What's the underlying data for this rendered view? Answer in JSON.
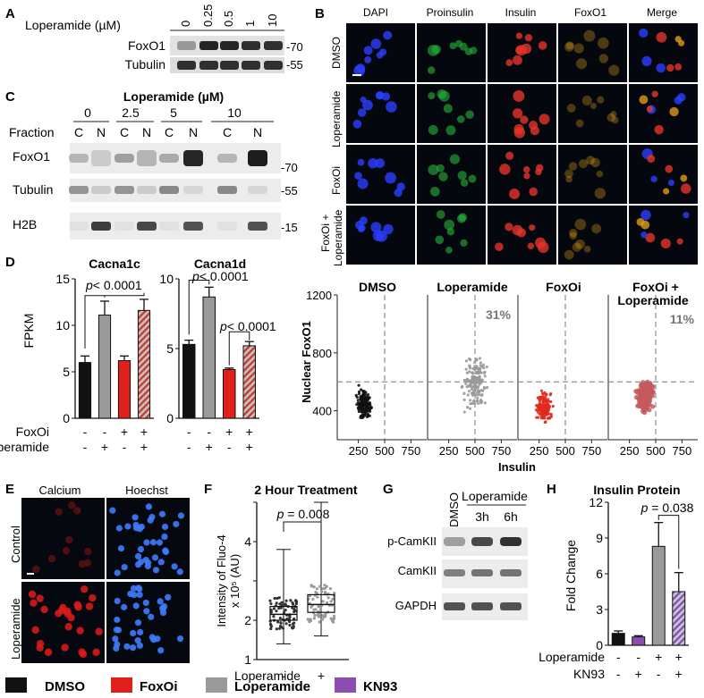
{
  "panels": {
    "A": {
      "letter": "A",
      "axis_title": "Loperamide (µM)",
      "doses": [
        "0",
        "0.25",
        "0.5",
        "1",
        "10"
      ],
      "rows": [
        "FoxO1",
        "Tubulin"
      ],
      "markers": [
        "-70",
        "-55"
      ]
    },
    "B": {
      "letter": "B",
      "columns": [
        "DAPI",
        "Proinsulin",
        "Insulin",
        "FoxO1",
        "Merge"
      ],
      "rows": [
        "DMSO",
        "Loperamide",
        "FoxOi",
        "FoxOi +",
        "Loperamide"
      ]
    },
    "C": {
      "letter": "C",
      "title": "Loperamide (µM)",
      "doses": [
        "0",
        "2.5",
        "5",
        "10"
      ],
      "fraction_label": "Fraction",
      "fractions": [
        "C",
        "N",
        "C",
        "N",
        "C",
        "N",
        "C",
        "N"
      ],
      "rows": [
        "FoxO1",
        "Tubulin",
        "H2B"
      ],
      "markers": [
        "-70",
        "-55",
        "-15"
      ]
    },
    "D": {
      "letter": "D",
      "ylabel": "FPKM",
      "row_labels": [
        "FoxOi",
        "Loperamide"
      ],
      "foxoi_signs": [
        "-",
        "-",
        "+",
        "+"
      ],
      "loperamide_signs": [
        "-",
        "+",
        "-",
        "+"
      ]
    },
    "scatter": {
      "ylabel": "Nuclear FoxO1",
      "xlabel": "Insulin",
      "titles": [
        "DMSO",
        "Loperamide",
        "FoxOi",
        "FoxOi +",
        "Loperamide"
      ],
      "percent_loperamide": "31%",
      "percent_combo": "11%"
    },
    "E": {
      "letter": "E",
      "columns": [
        "Calcium",
        "Hoechst"
      ],
      "rows": [
        "Control",
        "Loperamide"
      ]
    },
    "F": {
      "letter": "F",
      "title": "2 Hour Treatment",
      "ylabel_1": "Intensity of Fluo-4",
      "ylabel_2": "x 10⁵ (AU)",
      "pvalue": "p = 0.008",
      "row_label": "Loperamide",
      "signs": [
        "-",
        "+"
      ]
    },
    "G": {
      "letter": "G",
      "dmso": "DMSO",
      "loperamide": "Loperamide",
      "times": [
        "3h",
        "6h"
      ],
      "rows": [
        "p-CamKII",
        "CamKII",
        "GAPDH"
      ]
    },
    "H": {
      "letter": "H",
      "title": "Insulin Protein",
      "ylabel": "Fold Change",
      "pvalue": "p = 0.038",
      "row_labels": [
        "Loperamide",
        "KN93"
      ],
      "loperamide_signs": [
        "-",
        "-",
        "+",
        "+"
      ],
      "kn93_signs": [
        "-",
        "+",
        "-",
        "+"
      ]
    },
    "legend": [
      {
        "label": "DMSO",
        "color": "#111111"
      },
      {
        "label": "FoxOi",
        "color": "#e0201c"
      },
      {
        "label": "Loperamide",
        "color": "#9a9a9a"
      },
      {
        "label": "KN93",
        "color": "#8a4fb0"
      }
    ]
  },
  "chart_data": [
    {
      "type": "bar",
      "title": "Cacna1c",
      "ylabel": "FPKM",
      "ylim": [
        0,
        15
      ],
      "yticks": [
        0,
        5,
        10,
        15
      ],
      "categories": [
        "DMSO",
        "Loperamide",
        "FoxOi",
        "FoxOi + Loperamide"
      ],
      "values": [
        6.0,
        11.1,
        6.2,
        11.6
      ],
      "errors": [
        0.7,
        1.5,
        0.5,
        1.2
      ],
      "colors": [
        "#111111",
        "#9a9a9a",
        "#e0201c",
        "hatched"
      ],
      "annotations": [
        "p< 0.0001"
      ]
    },
    {
      "type": "bar",
      "title": "Cacna1d",
      "ylim": [
        0,
        10
      ],
      "yticks": [
        0,
        5,
        10
      ],
      "categories": [
        "DMSO",
        "Loperamide",
        "FoxOi",
        "FoxOi + Loperamide"
      ],
      "values": [
        5.3,
        8.7,
        3.5,
        5.2
      ],
      "errors": [
        0.3,
        0.7,
        0.1,
        0.3
      ],
      "colors": [
        "#111111",
        "#9a9a9a",
        "#e0201c",
        "hatched"
      ],
      "annotations": [
        "p< 0.0001",
        "p< 0.0001"
      ]
    },
    {
      "type": "scatter",
      "ylabel": "Nuclear FoxO1",
      "xlabel": "Insulin",
      "ylim": [
        200,
        1200
      ],
      "yticks": [
        400,
        800,
        1200
      ],
      "xticks": [
        250,
        500,
        750
      ],
      "series": [
        {
          "name": "DMSO",
          "x_center": 300,
          "y_center": 450
        },
        {
          "name": "Loperamide",
          "x_center": 500,
          "y_center": 600
        },
        {
          "name": "FoxOi",
          "x_center": 300,
          "y_center": 420
        },
        {
          "name": "FoxOi + Loperamide",
          "x_center": 400,
          "y_center": 500
        }
      ]
    },
    {
      "type": "box",
      "title": "2 Hour Treatment",
      "ylim": [
        1,
        5
      ],
      "yticks": [
        1,
        2,
        3,
        4,
        5
      ],
      "categories": [
        "-",
        "+"
      ],
      "boxes": [
        {
          "min": 1.4,
          "q1": 2.0,
          "median": 2.15,
          "q3": 2.35,
          "max": 3.8
        },
        {
          "min": 1.6,
          "q1": 2.2,
          "median": 2.4,
          "q3": 2.65,
          "max": 5.0
        }
      ]
    },
    {
      "type": "bar",
      "title": "Insulin Protein",
      "ylabel": "Fold Change",
      "ylim": [
        0,
        12
      ],
      "yticks": [
        0,
        3,
        6,
        9,
        12
      ],
      "categories": [
        "DMSO",
        "KN93",
        "Loperamide",
        "Loperamide + KN93"
      ],
      "values": [
        1.0,
        0.7,
        8.3,
        4.5
      ],
      "errors": [
        0.2,
        0.1,
        2.0,
        1.6
      ],
      "colors": [
        "#111111",
        "#8a4fb0",
        "#9a9a9a",
        "hatched-purple"
      ]
    }
  ]
}
